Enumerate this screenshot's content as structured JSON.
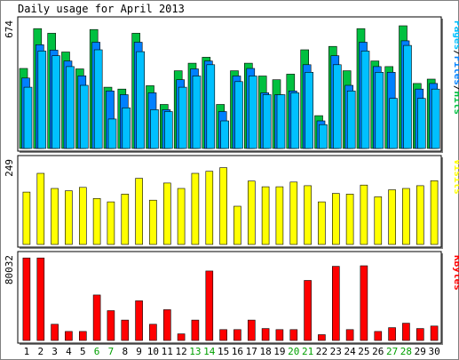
{
  "title": "Daily usage for April 2013",
  "colors": {
    "hits": "#00c040",
    "files": "#0080ff",
    "pages": "#00c0ff",
    "visits": "#ffff00",
    "kbytes": "#ff0000",
    "weekday_label": "#000000",
    "weekend_label": "#00a000",
    "bar_edge": "#000000",
    "panel_bg": "#ffffff"
  },
  "chart_data": [
    {
      "type": "bar",
      "name": "hits-files-pages",
      "x": [
        1,
        2,
        3,
        4,
        5,
        6,
        7,
        8,
        9,
        10,
        11,
        12,
        13,
        14,
        15,
        16,
        17,
        18,
        19,
        20,
        21,
        22,
        23,
        24,
        25,
        26,
        27,
        28,
        29,
        30
      ],
      "weekend_days": [
        6,
        7,
        13,
        14,
        20,
        21,
        27,
        28
      ],
      "ymax_label": "674",
      "ylim": [
        0,
        674
      ],
      "series": [
        {
          "name": "Hits",
          "color_key": "hits",
          "values": [
            427,
            640,
            615,
            515,
            425,
            635,
            327,
            317,
            615,
            335,
            235,
            415,
            455,
            487,
            235,
            415,
            455,
            387,
            367,
            397,
            527,
            175,
            545,
            415,
            640,
            467,
            437,
            655,
            347,
            370
          ]
        },
        {
          "name": "Files",
          "color_key": "files",
          "values": [
            376,
            554,
            525,
            467,
            388,
            567,
            307,
            287,
            567,
            297,
            207,
            367,
            425,
            467,
            197,
            387,
            427,
            297,
            287,
            307,
            447,
            147,
            495,
            337,
            567,
            437,
            407,
            575,
            317,
            347
          ]
        },
        {
          "name": "Pages",
          "color_key": "pages",
          "values": [
            327,
            520,
            495,
            437,
            337,
            527,
            157,
            217,
            517,
            207,
            197,
            327,
            387,
            447,
            147,
            357,
            387,
            287,
            287,
            297,
            407,
            127,
            447,
            307,
            520,
            407,
            267,
            550,
            267,
            317
          ]
        }
      ],
      "ylabel_parts": [
        {
          "text": "Pages",
          "color_key": "pages"
        },
        {
          "text": "/",
          "color_key": "weekday_label"
        },
        {
          "text": "Files",
          "color_key": "files"
        },
        {
          "text": "/",
          "color_key": "weekday_label"
        },
        {
          "text": "Hits",
          "color_key": "hits"
        }
      ]
    },
    {
      "type": "bar",
      "name": "visits",
      "ymax_label": "249",
      "ylim": [
        0,
        249
      ],
      "series": [
        {
          "name": "Visits",
          "color_key": "visits",
          "values": [
            156,
            212,
            167,
            160,
            170,
            137,
            127,
            150,
            197,
            132,
            183,
            167,
            212,
            218,
            229,
            114,
            189,
            172,
            172,
            186,
            175,
            127,
            152,
            150,
            177,
            142,
            163,
            167,
            175,
            190
          ]
        }
      ],
      "ylabel_parts": [
        {
          "text": "Visits",
          "color_key": "visits"
        }
      ]
    },
    {
      "type": "bar",
      "name": "kbytes",
      "ymax_label": "80032",
      "ylim": [
        0,
        80032
      ],
      "series": [
        {
          "name": "KBytes",
          "color_key": "kbytes",
          "values": [
            79000,
            79000,
            15500,
            8600,
            8600,
            43500,
            28500,
            19500,
            38000,
            15500,
            29500,
            6300,
            19500,
            66500,
            10400,
            10400,
            19500,
            11400,
            10400,
            10400,
            57500,
            5500,
            71000,
            10400,
            71500,
            8600,
            12300,
            16500,
            11400,
            13800
          ]
        }
      ],
      "ylabel_parts": [
        {
          "text": "KBytes",
          "color_key": "kbytes"
        }
      ]
    }
  ]
}
